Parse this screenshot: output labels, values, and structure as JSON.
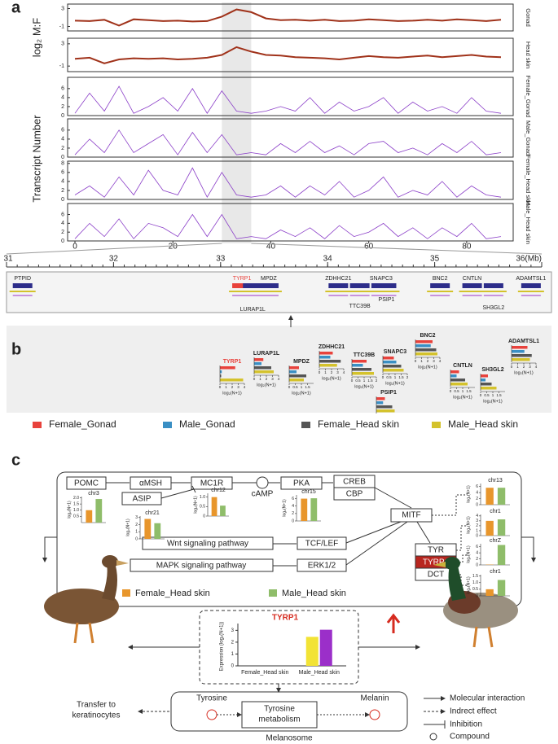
{
  "panel_a": {
    "label": "a",
    "ratio_label": "log₂ M:F",
    "count_label": "Transcript Number",
    "color_ratio": "#a0321a",
    "color_count": "#8b3fc8",
    "xlim": [
      -1.5,
      89.5
    ],
    "xticks": [
      0,
      20,
      40,
      60,
      80
    ],
    "highlight": [
      30,
      36
    ],
    "x": [
      0,
      3,
      6,
      9,
      12,
      15,
      18,
      21,
      24,
      27,
      30,
      33,
      36,
      39,
      42,
      45,
      48,
      51,
      54,
      57,
      60,
      63,
      66,
      69,
      72,
      75,
      78,
      81,
      84,
      87
    ],
    "tracks": [
      {
        "name": "Gonad",
        "type": "line",
        "ylim": [
          -2,
          4
        ],
        "yticks": [
          -1,
          3
        ],
        "values": [
          0.3,
          0.2,
          0.5,
          -0.8,
          0.6,
          0.4,
          0.2,
          0.3,
          0.1,
          0.2,
          1.2,
          2.8,
          2.2,
          0.8,
          0.4,
          0.5,
          0.3,
          0.5,
          0.2,
          0.3,
          0.6,
          0.4,
          0.2,
          0.3,
          0.5,
          0.3,
          0.6,
          0.4,
          0.2,
          0.5
        ]
      },
      {
        "name": "Head skin",
        "type": "line",
        "ylim": [
          -2,
          4
        ],
        "yticks": [
          -1,
          3
        ],
        "values": [
          0.3,
          0.5,
          -0.5,
          0.2,
          0.4,
          0.3,
          0.4,
          0.2,
          0.3,
          0.5,
          1.0,
          2.4,
          1.6,
          1.0,
          0.9,
          0.6,
          0.5,
          0.4,
          0.2,
          0.5,
          0.8,
          0.6,
          0.5,
          0.7,
          0.9,
          0.6,
          0.8,
          1.0,
          0.7,
          0.6
        ]
      },
      {
        "name": "Female_Gonad",
        "type": "spike",
        "ylim": [
          0,
          8.5
        ],
        "yticks": [
          0,
          2,
          4,
          6
        ],
        "values": [
          0.5,
          5,
          1,
          6.5,
          0.5,
          2,
          4,
          1,
          6,
          0.5,
          5.5,
          1,
          0.5,
          1,
          2,
          1,
          4,
          0.5,
          3,
          1,
          2,
          4,
          0.5,
          3,
          1,
          2,
          0.5,
          4,
          1,
          0.5
        ]
      },
      {
        "name": "Male_Gonad",
        "type": "spike",
        "ylim": [
          0,
          8.5
        ],
        "yticks": [
          0,
          2,
          4,
          6
        ],
        "values": [
          0.5,
          4,
          1,
          6,
          1,
          3,
          5,
          0.5,
          5.5,
          1,
          5,
          0.5,
          1,
          0.5,
          3,
          1,
          3.5,
          1,
          2.5,
          0.5,
          3,
          3.5,
          1,
          2,
          0.5,
          3,
          1,
          3.5,
          0.5,
          1
        ]
      },
      {
        "name": "Female_Head skin",
        "type": "spike",
        "ylim": [
          0,
          8.5
        ],
        "yticks": [
          0,
          2,
          4,
          6,
          8
        ],
        "values": [
          1,
          3,
          0.5,
          5,
          1,
          6.5,
          2,
          1,
          7,
          0.5,
          6,
          1,
          0.5,
          1,
          3,
          0.5,
          3,
          1,
          4,
          0.5,
          2,
          5,
          0.5,
          2,
          1,
          4,
          0.5,
          3,
          1,
          0.5
        ]
      },
      {
        "name": "Male_Head skin",
        "type": "spike",
        "ylim": [
          0,
          8.5
        ],
        "yticks": [
          0,
          2,
          4,
          6
        ],
        "values": [
          0.5,
          4,
          1,
          5,
          0.5,
          4,
          3,
          1,
          6,
          1,
          6,
          0.5,
          1,
          0.5,
          2.5,
          1,
          3,
          0.5,
          3.5,
          1,
          2,
          4,
          1,
          3,
          0.5,
          3,
          1,
          4,
          0.5,
          1
        ]
      }
    ]
  },
  "genomic": {
    "xlim": [
      31,
      36
    ],
    "xticks": [
      31,
      32,
      33,
      34,
      35,
      {
        "value": 36,
        "label": "36(Mb)"
      }
    ],
    "genes": [
      {
        "name": "PTPID",
        "pos": 31.15,
        "color": "#2d2d8a"
      },
      {
        "name": "TYRP1",
        "pos": 33.2,
        "color": "#e8423c"
      },
      {
        "name": "MPDZ",
        "pos": 33.45,
        "color": "#2d2d8a"
      },
      {
        "name": "LURAP1L",
        "pos": 33.3,
        "color": "#2d2d8a"
      },
      {
        "name": "ZDHHC21",
        "pos": 34.1,
        "color": "#2d2d8a"
      },
      {
        "name": "SNAPC3",
        "pos": 34.5,
        "color": "#2d2d8a"
      },
      {
        "name": "TTC39B",
        "pos": 34.3,
        "color": "#2d2d8a"
      },
      {
        "name": "PSIP1",
        "pos": 34.55,
        "color": "#2d2d8a"
      },
      {
        "name": "BNC2",
        "pos": 35.05,
        "color": "#2d2d8a"
      },
      {
        "name": "CNTLN",
        "pos": 35.35,
        "color": "#2d2d8a"
      },
      {
        "name": "SH3GL2",
        "pos": 35.55,
        "color": "#2d2d8a"
      },
      {
        "name": "ADAMTSL1",
        "pos": 35.9,
        "color": "#2d2d8a"
      }
    ]
  },
  "panel_b": {
    "label": "b",
    "axis_label": "log₂(N+1)",
    "legend": [
      {
        "name": "Female_Gonad",
        "color": "#e8423c"
      },
      {
        "name": "Male_Gonad",
        "color": "#3a8fc4"
      },
      {
        "name": "Female_Head skin",
        "color": "#555555"
      },
      {
        "name": "Male_Head skin",
        "color": "#d4c22c"
      }
    ],
    "genes": [
      {
        "name": "TYRP1",
        "color": "#e8423c",
        "xlim": [
          0,
          4
        ],
        "xticks": [
          0,
          1,
          2,
          3,
          4
        ],
        "values": [
          2.5,
          0.3,
          0.2,
          3.8
        ]
      },
      {
        "name": "LURAP1L",
        "color": "#222222",
        "xlim": [
          0,
          4
        ],
        "xticks": [
          0,
          1,
          2,
          3,
          4
        ],
        "values": [
          1.5,
          1.2,
          2.8,
          3.2
        ]
      },
      {
        "name": "MPDZ",
        "color": "#222222",
        "xlim": [
          0,
          2
        ],
        "xticks": [
          0,
          0.5,
          1,
          1.5
        ],
        "values": [
          0.8,
          0.6,
          1.4,
          1.2
        ]
      },
      {
        "name": "ZDHHC21",
        "color": "#222222",
        "xlim": [
          0,
          4
        ],
        "xticks": [
          0,
          1,
          2,
          3,
          4
        ],
        "values": [
          2.2,
          1.8,
          3.5,
          2.9
        ]
      },
      {
        "name": "TTC39B",
        "color": "#222222",
        "xlim": [
          0,
          2
        ],
        "xticks": [
          0,
          0.5,
          1,
          1.5,
          2
        ],
        "values": [
          1.2,
          0.9,
          1.6,
          1.8
        ]
      },
      {
        "name": "SNAPC3",
        "color": "#222222",
        "xlim": [
          0,
          2
        ],
        "xticks": [
          0,
          0.5,
          1,
          1.5,
          2
        ],
        "values": [
          0.9,
          1.1,
          1.5,
          1.7
        ]
      },
      {
        "name": "PSIP1",
        "color": "#222222",
        "xlim": [
          0,
          4
        ],
        "values": [
          1.4,
          1.1,
          2.6,
          3.0
        ]
      },
      {
        "name": "BNC2",
        "color": "#222222",
        "xlim": [
          0,
          4
        ],
        "xticks": [
          0,
          1,
          2,
          3,
          4
        ],
        "values": [
          2.8,
          2.5,
          3.4,
          3.6
        ]
      },
      {
        "name": "CNTLN",
        "color": "#222222",
        "xlim": [
          0,
          2
        ],
        "xticks": [
          0,
          0.5,
          1,
          1.5
        ],
        "values": [
          0.7,
          0.5,
          1.2,
          1.4
        ]
      },
      {
        "name": "SH3GL2",
        "color": "#222222",
        "xlim": [
          0,
          2
        ],
        "xticks": [
          0,
          0.5,
          1,
          1.5
        ],
        "values": [
          0.6,
          0.4,
          0.9,
          1.3
        ]
      },
      {
        "name": "ADAMTSL1",
        "color": "#222222",
        "xlim": [
          0,
          4
        ],
        "xticks": [
          0,
          1,
          2,
          3,
          4
        ],
        "values": [
          2.6,
          2.1,
          3.3,
          3.0
        ]
      }
    ]
  },
  "panel_c": {
    "label": "c",
    "nodes": [
      "POMC",
      "αMSH",
      "MC1R",
      "cAMP",
      "PKA",
      "CREB",
      "CBP",
      "ASIP",
      "MITF",
      "Wnt signaling pathway",
      "TCF/LEF",
      "MAPK signaling pathway",
      "ERK1/2",
      "TYR",
      "TYRP1",
      "DCT"
    ],
    "chart_axis_label": "log₂(N+1)",
    "legend": [
      {
        "name": "Female_Head skin",
        "color": "#e8962c"
      },
      {
        "name": "Male_Head skin",
        "color": "#8fbd6a"
      }
    ],
    "charts": [
      {
        "label": "chr3",
        "ylim": [
          0,
          2.1
        ],
        "yticks": [
          0.5,
          {
            "value": 1,
            "label": "1.0"
          },
          1.5,
          {
            "value": 2,
            "label": "2.0"
          }
        ],
        "values": [
          1.0,
          1.9
        ]
      },
      {
        "label": "chr21",
        "ylim": [
          0,
          3.2
        ],
        "yticks": [
          0,
          1,
          2,
          3
        ],
        "values": [
          2.8,
          2.2
        ]
      },
      {
        "label": "chr12",
        "ylim": [
          0,
          1.2
        ],
        "yticks": [
          0,
          0.5,
          {
            "value": 1,
            "label": "1.0"
          }
        ],
        "values": [
          1.0,
          0.55
        ]
      },
      {
        "label": "chr15",
        "ylim": [
          0,
          7
        ],
        "yticks": [
          0,
          2,
          4,
          6
        ],
        "values": [
          6.0,
          6.1
        ]
      },
      {
        "label": "chr13",
        "ylim": [
          0,
          7
        ],
        "yticks": [
          0,
          2,
          4,
          6
        ],
        "values": [
          5.6,
          5.6
        ]
      },
      {
        "label": "chr1",
        "ylim": [
          0,
          4.3
        ],
        "yticks": [
          0,
          1,
          2,
          3,
          4
        ],
        "values": [
          3.0,
          3.3
        ]
      },
      {
        "label": "chrZ",
        "ylim": [
          0,
          7
        ],
        "yticks": [
          0,
          2,
          4,
          6
        ],
        "values": [
          0.1,
          6.6
        ]
      },
      {
        "label": "chr1",
        "ylim": [
          0,
          1.6
        ],
        "yticks": [
          0,
          0.5,
          {
            "value": 1,
            "label": "1.0"
          },
          1.5
        ],
        "values": [
          0.5,
          1.2
        ]
      }
    ],
    "expression": {
      "title": "TYRP1",
      "y_label": "Expression (log₂(N+1))",
      "categories": [
        "Female_Head skin",
        "Male_Head skin"
      ],
      "ylim": [
        0,
        3.3
      ],
      "yticks": [
        0,
        1,
        2,
        3
      ],
      "series": [
        {
          "color": "#f2e335",
          "values": [
            0,
            2.45
          ]
        },
        {
          "color": "#9b2fc9",
          "values": [
            0,
            3.05
          ]
        }
      ]
    },
    "melanosome": {
      "input": "Tyrosine",
      "process": [
        "Tyrosine",
        "metabolism"
      ],
      "output": "Melanin",
      "compartment": "Melanosome",
      "transfer": [
        "Transfer to",
        "keratinocytes"
      ]
    },
    "key": [
      "Molecular interaction",
      "Indrect effect",
      "Inhibition",
      "Compound"
    ]
  }
}
